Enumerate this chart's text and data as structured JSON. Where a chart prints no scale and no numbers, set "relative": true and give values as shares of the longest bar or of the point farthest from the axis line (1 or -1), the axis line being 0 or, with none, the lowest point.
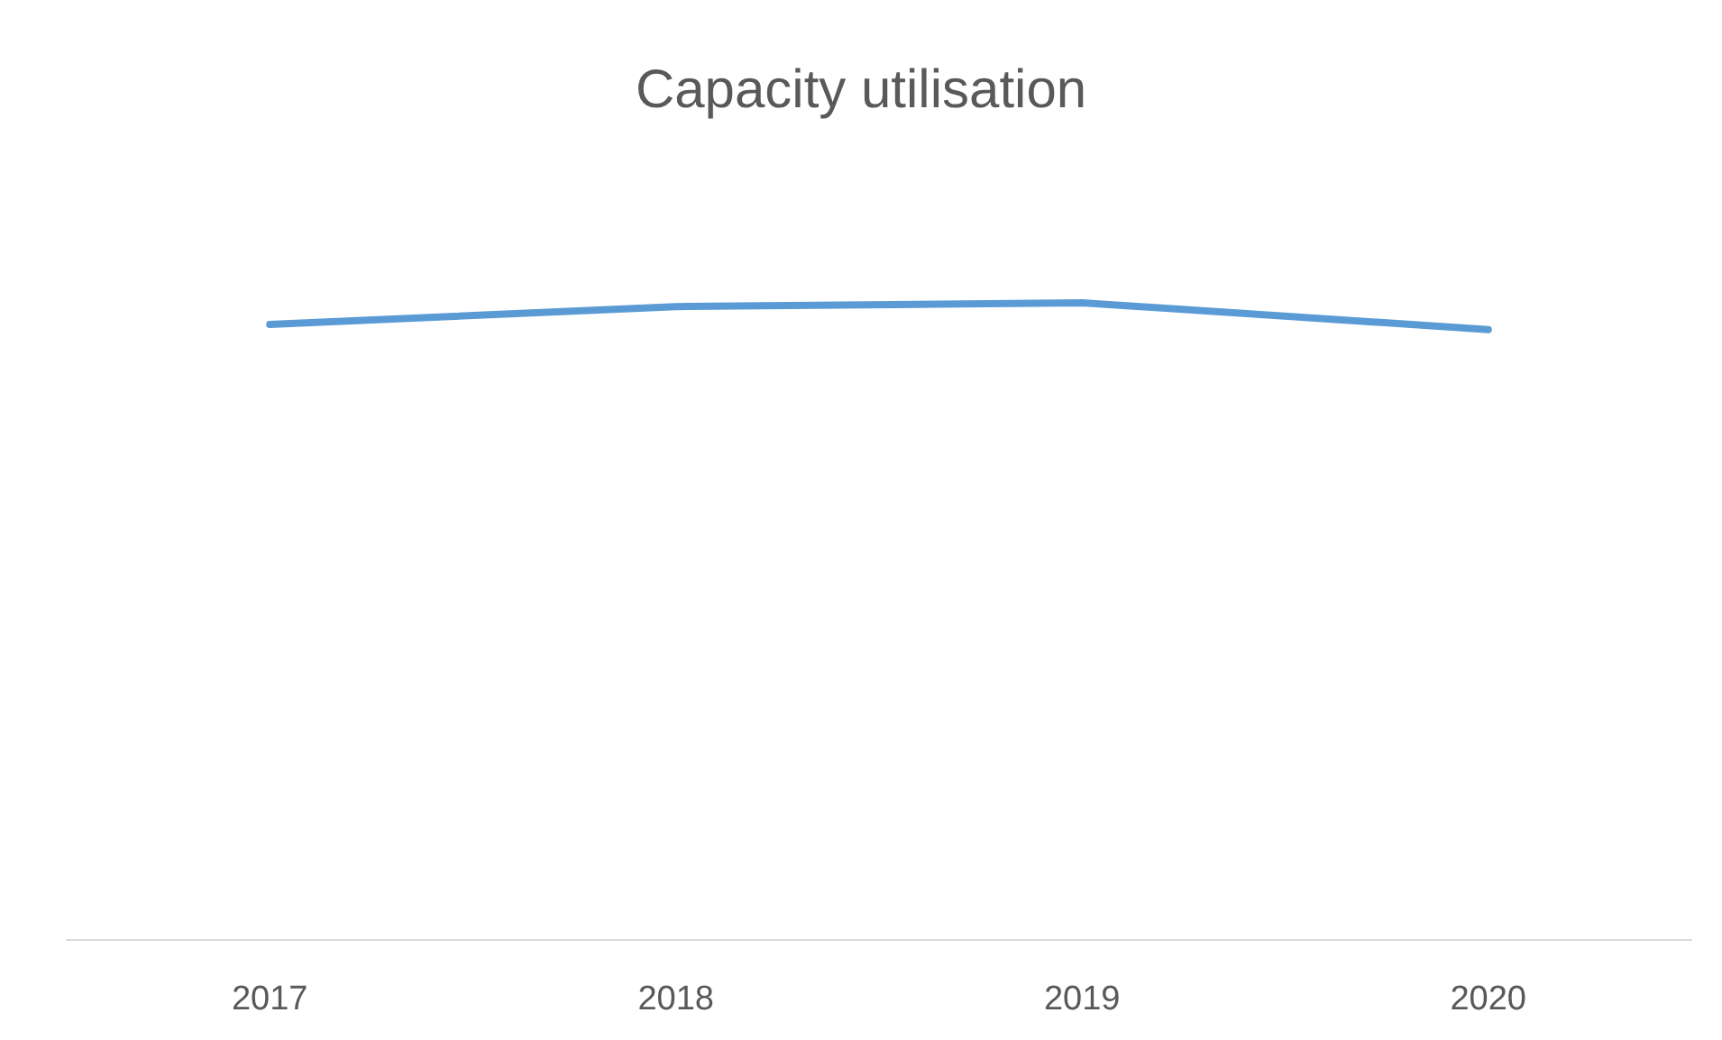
{
  "chart_data": {
    "type": "line",
    "title": "Capacity utilisation",
    "categories": [
      "2017",
      "2018",
      "2019",
      "2020"
    ],
    "series": [
      {
        "color": "#5b9bd5",
        "values": [
          0.966,
          0.994,
          1,
          0.958
        ]
      }
    ],
    "relative": true,
    "marker": "none"
  }
}
